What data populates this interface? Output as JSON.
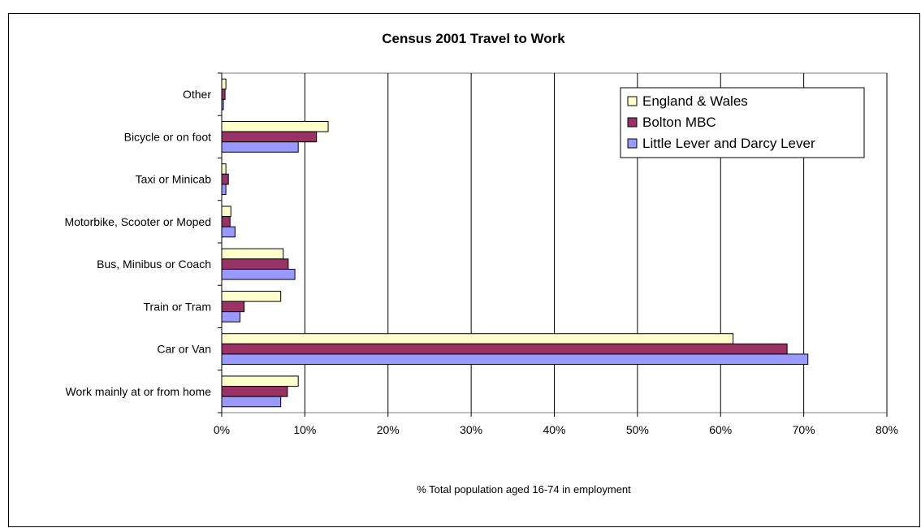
{
  "chart_data": {
    "type": "bar",
    "orientation": "horizontal",
    "title": "Census 2001 Travel to Work",
    "xlabel": "% Total population aged 16-74 in employment",
    "ylabel": "",
    "categories": [
      "Work mainly at or from home",
      "Car or Van",
      "Train or Tram",
      "Bus, Minibus or Coach",
      "Motorbike, Scooter or Moped",
      "Taxi or Minicab",
      "Bicycle or on foot",
      "Other"
    ],
    "series": [
      {
        "name": "England & Wales",
        "color": "#FFFFCC",
        "values": [
          9.2,
          61.5,
          7.1,
          7.4,
          1.1,
          0.5,
          12.8,
          0.5
        ]
      },
      {
        "name": "Bolton MBC",
        "color": "#993366",
        "values": [
          7.9,
          68.0,
          2.7,
          8.0,
          1.0,
          0.8,
          11.4,
          0.4
        ]
      },
      {
        "name": "Little Lever and Darcy Lever",
        "color": "#9999FF",
        "values": [
          7.1,
          70.5,
          2.2,
          8.8,
          1.6,
          0.5,
          9.2,
          0.2
        ]
      }
    ],
    "xlim": [
      0,
      80
    ],
    "xticks": [
      "0%",
      "10%",
      "20%",
      "30%",
      "40%",
      "50%",
      "60%",
      "70%",
      "80%"
    ],
    "grid": "vertical",
    "legend": "top-right"
  }
}
